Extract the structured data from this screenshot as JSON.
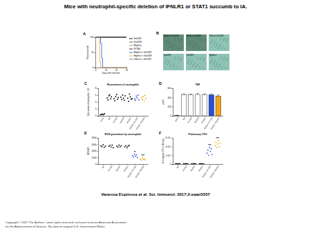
{
  "title": "Mice with neutrophil-specific deletion of IFNLR1 or STAT1 succumb to IA.",
  "citation": "Vanessa Espinosa et al. Sci. Immunol. 2017;2:eaan5357",
  "copyright": [
    "Copyright © 2017 The Authors, some rights reserved, exclusive licensee American Association",
    "for the Advancement of Science. No claim to original U.S. Government Works"
  ],
  "histology": {
    "label": "B",
    "tiles": [
      {
        "label": "Mrp8cre Stat1fl/fl",
        "color": "#5f8a78"
      },
      {
        "label": "Mrp8cre Ifnlr1fl/fl",
        "color": "#5f8a78"
      },
      {
        "label": "Villincre Ifnlr1fl/fl",
        "color": "#8ec3b4"
      },
      {
        "label": "Stat1fl/fl",
        "color": "#8ec3b4"
      },
      {
        "label": "Ifnlr1fl/fl",
        "color": "#8ec3b4"
      },
      {
        "label": "Mrp8cre",
        "color": "#8ec3b4"
      }
    ]
  },
  "chart_data": [
    {
      "type": "line",
      "label": "A",
      "line_style": "step",
      "x_label": "Days after infection",
      "y_label": "Percent survival",
      "x": [
        0,
        3,
        4,
        5,
        6,
        7,
        30
      ],
      "xlim": [
        0,
        30
      ],
      "xticks": [
        0,
        10,
        20,
        30
      ],
      "ylim": [
        0,
        100
      ],
      "yticks": [
        0,
        50,
        100
      ],
      "series": [
        {
          "name": "Ifnlr1fl/fl",
          "color": "#000000",
          "values": [
            100,
            100,
            100,
            100,
            100,
            100,
            100
          ]
        },
        {
          "name": "Stat1fl/fl",
          "color": "#555555",
          "values": [
            100,
            100,
            100,
            100,
            100,
            100,
            100
          ]
        },
        {
          "name": "Mrp8cre",
          "color": "#888888",
          "values": [
            100,
            100,
            100,
            100,
            100,
            100,
            100
          ]
        },
        {
          "name": "WT B6",
          "color": "#222222",
          "values": [
            100,
            100,
            100,
            100,
            100,
            100,
            100
          ]
        },
        {
          "name": "Mrp8cre × Ifnlr1fl/fl",
          "color": "#2b50d8",
          "values": [
            100,
            100,
            100,
            80,
            30,
            0,
            0
          ]
        },
        {
          "name": "Mrp8cre × Stat1fl/fl",
          "color": "#f2a51a",
          "values": [
            100,
            100,
            20,
            0,
            0,
            0,
            0
          ]
        },
        {
          "name": "Villincre × Ifnlr1fl/fl",
          "color": "#666666",
          "values": [
            100,
            100,
            100,
            100,
            100,
            100,
            100
          ]
        }
      ]
    },
    {
      "type": "scatter",
      "label": "C",
      "title": "Recruitment of neutrophils",
      "y_label": "Total number of neutrophils × 10⁶",
      "categories": [
        "Naive",
        "WT",
        "Ifnlr1fl/fl",
        "Stat1fl/fl",
        "Mrp8cre",
        "Mrp8cre Ifnlr1fl/fl",
        "Mrp8cre Stat1fl/fl"
      ],
      "colors": [
        "#000000",
        "#000000",
        "#000000",
        "#000000",
        "#000000",
        "#2b50d8",
        "#f2a51a"
      ],
      "ylim": [
        0,
        8
      ],
      "yticks": [
        0,
        2,
        4,
        6,
        8
      ],
      "values": [
        [
          0.3,
          0.4,
          0.5,
          0.3,
          0.6
        ],
        [
          5.2,
          4.6,
          5.8,
          6.1,
          4.9,
          5.5
        ],
        [
          5.0,
          4.4,
          5.6,
          6.2,
          4.8,
          5.3
        ],
        [
          5.4,
          4.7,
          6.0,
          5.1,
          4.5,
          5.8
        ],
        [
          5.1,
          4.2,
          6.3,
          5.5,
          4.8,
          5.0
        ],
        [
          4.9,
          4.5,
          5.7,
          5.2,
          6.0,
          4.6
        ],
        [
          5.3,
          4.8,
          5.6,
          4.4,
          5.9,
          5.1
        ]
      ]
    },
    {
      "type": "bar",
      "label": "D",
      "title": "TNF",
      "y_label": "pg/ml",
      "categories": [
        "Naive",
        "WT",
        "Ifnlr1fl/fl",
        "Stat1fl/fl",
        "Mrp8cre",
        "Mrp8cre Ifnlr1fl/fl",
        "Mrp8cre Stat1fl/fl"
      ],
      "colors": [
        "#ffffff",
        "#ffffff",
        "#ffffff",
        "#ffffff",
        "#ffffff",
        "#2b50d8",
        "#f2a51a"
      ],
      "ylim": [
        0,
        600
      ],
      "yticks": [
        0,
        200,
        400,
        600
      ],
      "values": [
        10,
        460,
        455,
        465,
        460,
        455,
        430
      ],
      "errors": [
        5,
        20,
        20,
        20,
        20,
        20,
        25
      ]
    },
    {
      "type": "scatter",
      "label": "E",
      "title": "ROS generation by neutrophils",
      "y_label": "ROS MFI",
      "categories": [
        "WT",
        "Ifnlr1fl/fl",
        "Stat1fl/fl",
        "Mrp8cre",
        "Mrp8cre Ifnlr1fl/fl",
        "Mrp8cre Stat1fl/fl"
      ],
      "colors": [
        "#000000",
        "#000000",
        "#000000",
        "#000000",
        "#2b50d8",
        "#f2a51a"
      ],
      "ylim": [
        0,
        8000
      ],
      "yticks": [
        0,
        2000,
        4000,
        6000,
        8000
      ],
      "values": [
        [
          5600,
          5300,
          5900,
          5100,
          5500
        ],
        [
          5400,
          5700,
          5200,
          5800,
          5000
        ],
        [
          5500,
          5200,
          5800,
          5300,
          5600
        ],
        [
          5300,
          5600,
          5000,
          5500,
          5700
        ],
        [
          2600,
          2200,
          3000,
          2400,
          2800,
          2000
        ],
        [
          1500,
          1200,
          1800,
          1400,
          1600,
          1300
        ]
      ],
      "annotations": [
        {
          "text": "**",
          "category": "Mrp8cre Ifnlr1fl/fl"
        },
        {
          "text": "***",
          "category": "Mrp8cre Stat1fl/fl"
        }
      ]
    },
    {
      "type": "scatter",
      "label": "F",
      "title": "Pulmonary CFU",
      "y_label": "A. fumigatus CFU in the lung",
      "categories": [
        "WT",
        "Ifnlr1fl/fl",
        "Stat1fl/fl",
        "Mrp8cre",
        "Mrp8cre Ifnlr1fl/fl",
        "Mrp8cre Stat1fl/fl"
      ],
      "colors": [
        "#000000",
        "#000000",
        "#000000",
        "#000000",
        "#2b50d8",
        "#f2a51a"
      ],
      "ylim": [
        0,
        600000
      ],
      "yticks": [
        0,
        {
          "value": 200000,
          "label": "2×10⁵"
        },
        {
          "value": 400000,
          "label": "4×10⁵"
        },
        {
          "value": 600000,
          "label": "6×10⁵"
        }
      ],
      "values": [
        [
          5000,
          8000,
          3000,
          10000,
          6000
        ],
        [
          7000,
          4000,
          9000,
          5000,
          6000
        ],
        [
          6000,
          3000,
          8000,
          4000,
          7000
        ],
        [
          4000,
          9000,
          5000,
          7000,
          3000
        ],
        [
          250000,
          320000,
          200000,
          380000,
          290000,
          350000,
          220000
        ],
        [
          420000,
          500000,
          380000,
          460000,
          540000,
          400000,
          480000
        ]
      ],
      "annotations": [
        {
          "text": "***",
          "category": "Mrp8cre Ifnlr1fl/fl"
        },
        {
          "text": "***",
          "category": "Mrp8cre Stat1fl/fl"
        }
      ]
    }
  ]
}
